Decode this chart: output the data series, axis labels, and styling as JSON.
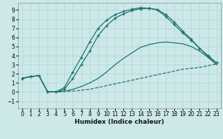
{
  "xlabel": "Humidex (Indice chaleur)",
  "xlim": [
    -0.5,
    23.5
  ],
  "ylim": [
    -1.8,
    9.8
  ],
  "xticks": [
    0,
    1,
    2,
    3,
    4,
    5,
    6,
    7,
    8,
    9,
    10,
    11,
    12,
    13,
    14,
    15,
    16,
    17,
    18,
    19,
    20,
    21,
    22,
    23
  ],
  "yticks": [
    -1,
    0,
    1,
    2,
    3,
    4,
    5,
    6,
    7,
    8,
    9
  ],
  "bg_color": "#cce8e8",
  "line_color": "#1a7070",
  "grid_color": "#b0d4d4",
  "curve_dashed": {
    "x": [
      0,
      1,
      2,
      3,
      4,
      5,
      6,
      7,
      8,
      9,
      10,
      11,
      12,
      13,
      14,
      15,
      16,
      17,
      18,
      19,
      20,
      21,
      22,
      23
    ],
    "y": [
      1.5,
      1.7,
      1.8,
      0.05,
      0.0,
      0.05,
      0.1,
      0.2,
      0.3,
      0.5,
      0.7,
      0.9,
      1.1,
      1.3,
      1.5,
      1.7,
      1.9,
      2.1,
      2.3,
      2.5,
      2.6,
      2.7,
      2.9,
      3.1
    ]
  },
  "curve_mid": {
    "x": [
      0,
      1,
      2,
      3,
      4,
      5,
      6,
      7,
      8,
      9,
      10,
      11,
      12,
      13,
      14,
      15,
      16,
      17,
      18,
      19,
      20,
      21,
      22,
      23
    ],
    "y": [
      1.5,
      1.7,
      1.8,
      0.05,
      0.0,
      0.1,
      0.3,
      0.6,
      1.0,
      1.5,
      2.2,
      3.0,
      3.7,
      4.3,
      4.9,
      5.2,
      5.4,
      5.5,
      5.4,
      5.3,
      5.0,
      4.5,
      3.8,
      3.0
    ]
  },
  "curve_top1": {
    "x": [
      0,
      1,
      2,
      3,
      4,
      5,
      6,
      7,
      8,
      9,
      10,
      11,
      12,
      13,
      14,
      15,
      16,
      17,
      18,
      19,
      20,
      21,
      22,
      23
    ],
    "y": [
      1.5,
      1.7,
      1.8,
      0.05,
      0.0,
      0.3,
      1.5,
      3.0,
      4.5,
      6.2,
      7.3,
      8.1,
      8.6,
      8.95,
      9.15,
      9.2,
      9.05,
      8.5,
      7.7,
      6.7,
      5.8,
      4.8,
      3.9,
      3.2
    ]
  },
  "curve_top2": {
    "x": [
      0,
      1,
      2,
      3,
      4,
      5,
      6,
      7,
      8,
      9,
      10,
      11,
      12,
      13,
      14,
      15,
      16,
      17,
      18,
      19,
      20,
      21,
      22,
      23
    ],
    "y": [
      1.5,
      1.7,
      1.8,
      0.05,
      0.0,
      0.5,
      2.2,
      3.8,
      5.5,
      7.0,
      7.9,
      8.5,
      8.85,
      9.1,
      9.25,
      9.2,
      9.0,
      8.3,
      7.4,
      6.5,
      5.7,
      4.8,
      4.0,
      3.2
    ]
  }
}
